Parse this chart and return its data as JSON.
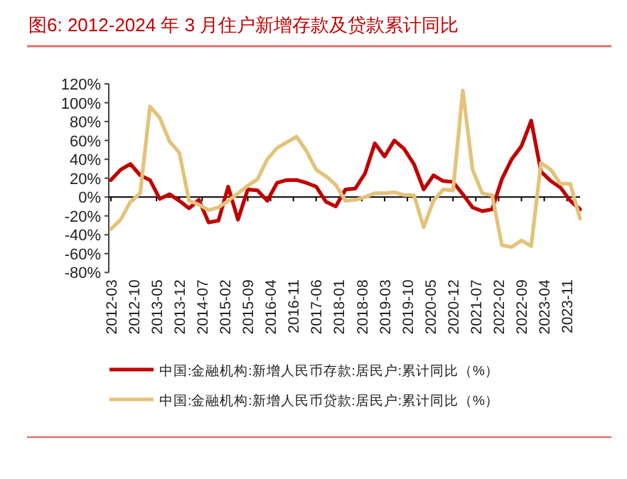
{
  "chart_data": {
    "type": "line",
    "title": "图6:  2012-2024 年 3 月住户新增存款及贷款累计同比",
    "x": [
      "2012-03",
      "2012-06",
      "2012-09",
      "2012-12",
      "2013-03",
      "2013-06",
      "2013-09",
      "2013-12",
      "2014-03",
      "2014-06",
      "2014-09",
      "2014-12",
      "2015-03",
      "2015-06",
      "2015-09",
      "2015-12",
      "2016-03",
      "2016-06",
      "2016-09",
      "2016-12",
      "2017-03",
      "2017-06",
      "2017-09",
      "2017-12",
      "2018-03",
      "2018-06",
      "2018-09",
      "2018-12",
      "2019-03",
      "2019-06",
      "2019-09",
      "2019-12",
      "2020-03",
      "2020-06",
      "2020-09",
      "2020-12",
      "2021-03",
      "2021-06",
      "2021-09",
      "2021-12",
      "2022-03",
      "2022-06",
      "2022-09",
      "2022-12",
      "2023-03",
      "2023-06",
      "2023-09",
      "2023-12",
      "2024-03"
    ],
    "series": [
      {
        "name": "中国:金融机构:新增人民币存款:居民户:累计同比（%）",
        "color": "#c00000",
        "values": [
          18,
          29,
          35,
          23,
          18,
          -2,
          3,
          -4,
          -12,
          -3,
          -27,
          -25,
          11,
          -24,
          8,
          7,
          -4,
          15,
          18,
          18,
          15,
          11,
          -5,
          -10,
          8,
          9,
          25,
          57,
          43,
          60,
          51,
          35,
          8,
          23,
          17,
          16,
          3,
          -11,
          -15,
          -13,
          19,
          40,
          54,
          81,
          27,
          17,
          10,
          -4,
          -13
        ]
      },
      {
        "name": "中国:金融机构:新增人民币贷款:居民户:累计同比（%）",
        "color": "#e3c27a",
        "values": [
          -34,
          -24,
          -5,
          4,
          96,
          84,
          59,
          47,
          -4,
          -8,
          -14,
          -11,
          -4,
          4,
          12,
          19,
          40,
          52,
          58,
          64,
          49,
          29,
          22,
          13,
          -4,
          -3,
          0,
          4,
          4,
          5,
          2,
          2,
          -32,
          -4,
          8,
          7,
          113,
          29,
          4,
          2,
          -51,
          -53,
          -46,
          -52,
          36,
          29,
          14,
          14,
          -23
        ]
      }
    ],
    "xlim": [
      "2012-03",
      "2024-03"
    ],
    "xticks": [
      "2012-03",
      "2012-10",
      "2013-05",
      "2013-12",
      "2014-07",
      "2015-02",
      "2015-09",
      "2016-04",
      "2016-11",
      "2017-06",
      "2018-01",
      "2018-08",
      "2019-03",
      "2019-10",
      "2020-05",
      "2020-12",
      "2021-07",
      "2022-02",
      "2022-09",
      "2023-04",
      "2023-11"
    ],
    "ylim": [
      -80,
      120
    ],
    "yticks": [
      {
        "value": -80,
        "label": "-80%"
      },
      {
        "value": -60,
        "label": "-60%"
      },
      {
        "value": -40,
        "label": "-40%"
      },
      {
        "value": -20,
        "label": "-20%"
      },
      {
        "value": 0,
        "label": "0%"
      },
      {
        "value": 20,
        "label": "20%"
      },
      {
        "value": 40,
        "label": "40%"
      },
      {
        "value": 60,
        "label": "60%"
      },
      {
        "value": 80,
        "label": "80%"
      },
      {
        "value": 100,
        "label": "100%"
      },
      {
        "value": 120,
        "label": "120%"
      }
    ],
    "legend": "bottom",
    "marker": "none",
    "line_style": "solid"
  }
}
